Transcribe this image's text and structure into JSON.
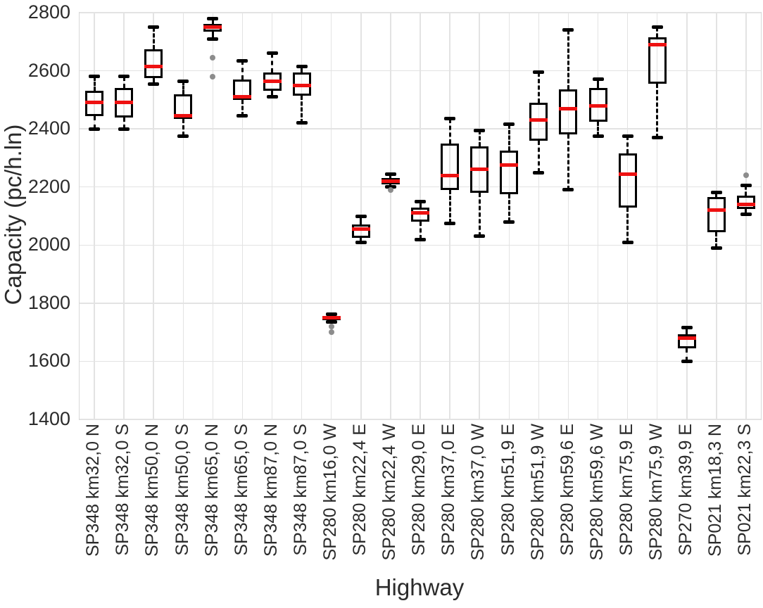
{
  "chart_data": {
    "type": "boxplot",
    "title": "",
    "xlabel": "Highway",
    "ylabel": "Capacity (pc/h.ln)",
    "ylim": [
      1400,
      2800
    ],
    "yticks": [
      1400,
      1600,
      1800,
      2000,
      2200,
      2400,
      2600,
      2800
    ],
    "grid": true,
    "legend": "none",
    "categories": [
      "SP348 km32,0 N",
      "SP348 km32,0 S",
      "SP348 km50,0 N",
      "SP348 km50,0 S",
      "SP348 km65,0 N",
      "SP348 km65,0 S",
      "SP348 km87,0 N",
      "SP348 km87,0 S",
      "SP280 km16,0 W",
      "SP280 km22,4 E",
      "SP280 km22,4 W",
      "SP280 km29,0 E",
      "SP280 km37,0 E",
      "SP280 km37,0 W",
      "SP280 km51,9 E",
      "SP280 km51,9 W",
      "SP280 km59,6 E",
      "SP280 km59,6 W",
      "SP280 km75,9 E",
      "SP280 km75,9 W",
      "SP270 km39,9 E",
      "SP021 km18,3 N",
      "SP021 km22,3 S"
    ],
    "boxes": [
      {
        "label": "SP348 km32,0 N",
        "whisker_low": 2400,
        "q1": 2445,
        "median": 2490,
        "q3": 2530,
        "whisker_high": 2580,
        "outliers": []
      },
      {
        "label": "SP348 km32,0 S",
        "whisker_low": 2400,
        "q1": 2440,
        "median": 2490,
        "q3": 2540,
        "whisker_high": 2580,
        "outliers": []
      },
      {
        "label": "SP348 km50,0 N",
        "whisker_low": 2555,
        "q1": 2575,
        "median": 2615,
        "q3": 2675,
        "whisker_high": 2750,
        "outliers": []
      },
      {
        "label": "SP348 km50,0 S",
        "whisker_low": 2375,
        "q1": 2435,
        "median": 2445,
        "q3": 2520,
        "whisker_high": 2565,
        "outliers": []
      },
      {
        "label": "SP348 km65,0 N",
        "whisker_low": 2710,
        "q1": 2735,
        "median": 2750,
        "q3": 2762,
        "whisker_high": 2780,
        "outliers": [
          2645,
          2580
        ]
      },
      {
        "label": "SP348 km65,0 S",
        "whisker_low": 2445,
        "q1": 2500,
        "median": 2510,
        "q3": 2570,
        "whisker_high": 2635,
        "outliers": []
      },
      {
        "label": "SP348 km87,0 N",
        "whisker_low": 2510,
        "q1": 2530,
        "median": 2565,
        "q3": 2595,
        "whisker_high": 2660,
        "outliers": []
      },
      {
        "label": "SP348 km87,0 S",
        "whisker_low": 2420,
        "q1": 2515,
        "median": 2550,
        "q3": 2595,
        "whisker_high": 2615,
        "outliers": []
      },
      {
        "label": "SP280 km16,0 W",
        "whisker_low": 1735,
        "q1": 1742,
        "median": 1750,
        "q3": 1757,
        "whisker_high": 1763,
        "outliers": [
          1720,
          1700
        ]
      },
      {
        "label": "SP280 km22,4 E",
        "whisker_low": 2010,
        "q1": 2025,
        "median": 2055,
        "q3": 2070,
        "whisker_high": 2100,
        "outliers": []
      },
      {
        "label": "SP280 km22,4 W",
        "whisker_low": 2200,
        "q1": 2210,
        "median": 2220,
        "q3": 2230,
        "whisker_high": 2245,
        "outliers": [
          2190
        ]
      },
      {
        "label": "SP280 km29,0 E",
        "whisker_low": 2020,
        "q1": 2080,
        "median": 2110,
        "q3": 2130,
        "whisker_high": 2150,
        "outliers": []
      },
      {
        "label": "SP280 km37,0 E",
        "whisker_low": 2075,
        "q1": 2190,
        "median": 2240,
        "q3": 2350,
        "whisker_high": 2435,
        "outliers": []
      },
      {
        "label": "SP280 km37,0 W",
        "whisker_low": 2030,
        "q1": 2180,
        "median": 2260,
        "q3": 2340,
        "whisker_high": 2395,
        "outliers": []
      },
      {
        "label": "SP280 km51,9 E",
        "whisker_low": 2080,
        "q1": 2175,
        "median": 2275,
        "q3": 2325,
        "whisker_high": 2415,
        "outliers": []
      },
      {
        "label": "SP280 km51,9 W",
        "whisker_low": 2250,
        "q1": 2360,
        "median": 2430,
        "q3": 2490,
        "whisker_high": 2595,
        "outliers": []
      },
      {
        "label": "SP280 km59,6 E",
        "whisker_low": 2190,
        "q1": 2380,
        "median": 2470,
        "q3": 2535,
        "whisker_high": 2740,
        "outliers": []
      },
      {
        "label": "SP280 km59,6 W",
        "whisker_low": 2375,
        "q1": 2425,
        "median": 2480,
        "q3": 2540,
        "whisker_high": 2570,
        "outliers": []
      },
      {
        "label": "SP280 km75,9 E",
        "whisker_low": 2010,
        "q1": 2130,
        "median": 2245,
        "q3": 2315,
        "whisker_high": 2375,
        "outliers": []
      },
      {
        "label": "SP280 km75,9 W",
        "whisker_low": 2370,
        "q1": 2555,
        "median": 2690,
        "q3": 2715,
        "whisker_high": 2750,
        "outliers": []
      },
      {
        "label": "SP270 km39,9 E",
        "whisker_low": 1600,
        "q1": 1645,
        "median": 1680,
        "q3": 1692,
        "whisker_high": 1715,
        "outliers": []
      },
      {
        "label": "SP021 km18,3 N",
        "whisker_low": 1990,
        "q1": 2045,
        "median": 2120,
        "q3": 2165,
        "whisker_high": 2180,
        "outliers": []
      },
      {
        "label": "SP021 km22,3 S",
        "whisker_low": 2105,
        "q1": 2125,
        "median": 2140,
        "q3": 2170,
        "whisker_high": 2205,
        "outliers": [
          2240
        ]
      }
    ]
  },
  "colors": {
    "median": "#ee1111",
    "box_edge": "#000000",
    "whisker": "#000000",
    "outlier": "#8c8c8c",
    "grid": "#e3e3e3",
    "text": "#2b2b2b",
    "background": "#ffffff"
  }
}
